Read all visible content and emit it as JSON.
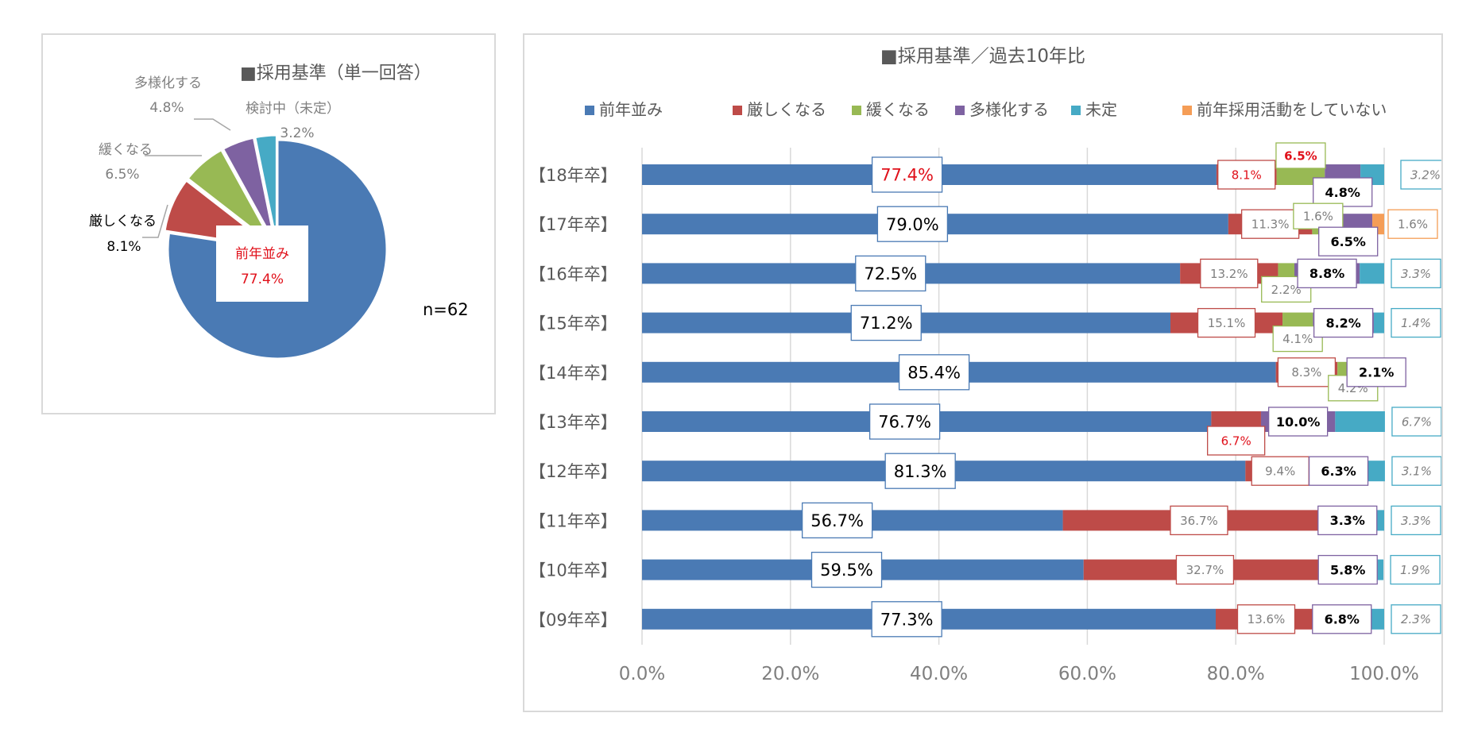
{
  "colors": {
    "same": "#4a7ab4",
    "stricter": "#be4b48",
    "looser": "#98b954",
    "diverse": "#7e62a1",
    "undecided": "#46aac5",
    "none": "#f59d56",
    "red_text": "#e0101a",
    "axis_text": "#7f7f7f",
    "grid": "#d9d9d9"
  },
  "chart_data": [
    {
      "type": "pie",
      "title": "■採用基準（単一回答）",
      "n_label": "n=62",
      "slices": [
        {
          "key": "same",
          "label": "前年並み",
          "value": 77.4,
          "value_label": "77.4%"
        },
        {
          "key": "stricter",
          "label": "厳しくなる",
          "value": 8.1,
          "value_label": "8.1%"
        },
        {
          "key": "looser",
          "label": "緩くなる",
          "value": 6.5,
          "value_label": "6.5%"
        },
        {
          "key": "diverse",
          "label": "多様化する",
          "value": 4.8,
          "value_label": "4.8%"
        },
        {
          "key": "undecided",
          "label": "検討中（未定）",
          "value": 3.2,
          "value_label": "3.2%"
        }
      ]
    },
    {
      "type": "bar",
      "orientation": "horizontal",
      "stacked": true,
      "title": "■採用基準／過去10年比",
      "legend_position": "top",
      "xlim": [
        0,
        100
      ],
      "xticks": [
        "0.0%",
        "20.0%",
        "40.0%",
        "60.0%",
        "80.0%",
        "100.0%"
      ],
      "categories": [
        "【18年卒】",
        "【17年卒】",
        "【16年卒】",
        "【15年卒】",
        "【14年卒】",
        "【13年卒】",
        "【12年卒】",
        "【11年卒】",
        "【10年卒】",
        "【09年卒】"
      ],
      "series": [
        {
          "key": "same",
          "name": "前年並み",
          "values": [
            77.4,
            79.0,
            72.5,
            71.2,
            85.4,
            76.7,
            81.3,
            56.7,
            59.5,
            77.3
          ]
        },
        {
          "key": "stricter",
          "name": "厳しくなる",
          "values": [
            8.1,
            11.3,
            13.2,
            15.1,
            8.3,
            6.7,
            9.4,
            36.7,
            32.7,
            13.6
          ]
        },
        {
          "key": "looser",
          "name": "緩くなる",
          "values": [
            6.5,
            1.6,
            2.2,
            4.1,
            4.2,
            0,
            0,
            0,
            0,
            0
          ]
        },
        {
          "key": "diverse",
          "name": "多様化する",
          "values": [
            4.8,
            6.5,
            8.8,
            8.2,
            2.1,
            10.0,
            6.3,
            3.3,
            5.8,
            6.8
          ]
        },
        {
          "key": "undecided",
          "name": "未定",
          "values": [
            3.2,
            0,
            3.3,
            1.4,
            0,
            6.7,
            3.1,
            3.3,
            1.9,
            2.3
          ]
        },
        {
          "key": "none",
          "name": "前年採用活動をしていない",
          "values": [
            0,
            1.6,
            0,
            0,
            0,
            0,
            0,
            0,
            0,
            0
          ]
        }
      ],
      "data_labels": [
        {
          "row": 0,
          "key": "same",
          "text": "77.4%"
        },
        {
          "row": 0,
          "key": "stricter",
          "text": "8.1%"
        },
        {
          "row": 0,
          "key": "looser",
          "text": "6.5%"
        },
        {
          "row": 0,
          "key": "diverse",
          "text": "4.8%"
        },
        {
          "row": 0,
          "key": "undecided",
          "text": "3.2%"
        },
        {
          "row": 1,
          "key": "same",
          "text": "79.0%"
        },
        {
          "row": 1,
          "key": "stricter",
          "text": "11.3%"
        },
        {
          "row": 1,
          "key": "looser",
          "text": "1.6%"
        },
        {
          "row": 1,
          "key": "diverse",
          "text": "6.5%"
        },
        {
          "row": 1,
          "key": "none",
          "text": "1.6%"
        },
        {
          "row": 2,
          "key": "same",
          "text": "72.5%"
        },
        {
          "row": 2,
          "key": "stricter",
          "text": "13.2%"
        },
        {
          "row": 2,
          "key": "looser",
          "text": "2.2%"
        },
        {
          "row": 2,
          "key": "diverse",
          "text": "8.8%"
        },
        {
          "row": 2,
          "key": "undecided",
          "text": "3.3%"
        },
        {
          "row": 3,
          "key": "same",
          "text": "71.2%"
        },
        {
          "row": 3,
          "key": "stricter",
          "text": "15.1%"
        },
        {
          "row": 3,
          "key": "looser",
          "text": "4.1%"
        },
        {
          "row": 3,
          "key": "diverse",
          "text": "8.2%"
        },
        {
          "row": 3,
          "key": "undecided",
          "text": "1.4%"
        },
        {
          "row": 4,
          "key": "same",
          "text": "85.4%"
        },
        {
          "row": 4,
          "key": "stricter",
          "text": "8.3%"
        },
        {
          "row": 4,
          "key": "looser",
          "text": "4.2%"
        },
        {
          "row": 4,
          "key": "diverse",
          "text": "2.1%"
        },
        {
          "row": 5,
          "key": "same",
          "text": "76.7%"
        },
        {
          "row": 5,
          "key": "stricter",
          "text": "6.7%"
        },
        {
          "row": 5,
          "key": "diverse",
          "text": "10.0%"
        },
        {
          "row": 5,
          "key": "undecided",
          "text": "6.7%"
        },
        {
          "row": 6,
          "key": "same",
          "text": "81.3%"
        },
        {
          "row": 6,
          "key": "stricter",
          "text": "9.4%"
        },
        {
          "row": 6,
          "key": "diverse",
          "text": "6.3%"
        },
        {
          "row": 6,
          "key": "undecided",
          "text": "3.1%"
        },
        {
          "row": 7,
          "key": "same",
          "text": "56.7%"
        },
        {
          "row": 7,
          "key": "stricter",
          "text": "36.7%"
        },
        {
          "row": 7,
          "key": "diverse",
          "text": "3.3%"
        },
        {
          "row": 7,
          "key": "undecided",
          "text": "3.3%"
        },
        {
          "row": 8,
          "key": "same",
          "text": "59.5%"
        },
        {
          "row": 8,
          "key": "stricter",
          "text": "32.7%"
        },
        {
          "row": 8,
          "key": "diverse",
          "text": "5.8%"
        },
        {
          "row": 8,
          "key": "undecided",
          "text": "1.9%"
        },
        {
          "row": 9,
          "key": "same",
          "text": "77.3%"
        },
        {
          "row": 9,
          "key": "stricter",
          "text": "13.6%"
        },
        {
          "row": 9,
          "key": "diverse",
          "text": "6.8%"
        },
        {
          "row": 9,
          "key": "undecided",
          "text": "2.3%"
        }
      ]
    }
  ]
}
